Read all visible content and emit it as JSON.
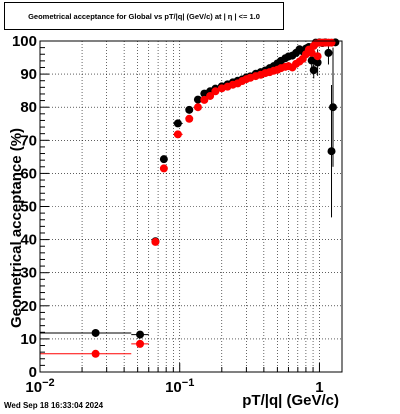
{
  "chart_data": {
    "type": "scatter",
    "title": "Geometrical acceptance for Global vs pT/|q| (GeV/c) at |  η | <= 1.0",
    "xlabel": "pT/|q| (GeV/c)",
    "ylabel": "Geometrical acceptance (%)",
    "xscale": "log",
    "xlim": [
      0.01,
      1.45
    ],
    "ylim": [
      0,
      100
    ],
    "grid": true,
    "x_ticks": [
      {
        "value": 0.01,
        "base": "10",
        "exp": "−2"
      },
      {
        "value": 0.1,
        "base": "10",
        "exp": "−1"
      },
      {
        "value": 1,
        "base": "1",
        "exp": ""
      }
    ],
    "y_ticks": [
      0,
      10,
      20,
      30,
      40,
      50,
      60,
      70,
      80,
      90,
      100
    ],
    "series": [
      {
        "color": "#000000",
        "points": [
          {
            "x": 0.025,
            "y": 11.8,
            "xerr": [
              0.01,
              0.045
            ]
          },
          {
            "x": 0.052,
            "y": 11.3,
            "xerr": [
              0.045,
              0.06
            ]
          },
          {
            "x": 0.067,
            "y": 39.5,
            "xerr": [
              0.064,
              0.07
            ]
          },
          {
            "x": 0.077,
            "y": 64.3
          },
          {
            "x": 0.097,
            "y": 75.1,
            "xerr": [
              0.09,
              0.105
            ]
          },
          {
            "x": 0.117,
            "y": 79.2
          },
          {
            "x": 0.135,
            "y": 82.3
          },
          {
            "x": 0.15,
            "y": 84.1
          },
          {
            "x": 0.165,
            "y": 84.8
          },
          {
            "x": 0.18,
            "y": 85.6
          },
          {
            "x": 0.2,
            "y": 86.3
          },
          {
            "x": 0.22,
            "y": 86.9
          },
          {
            "x": 0.24,
            "y": 87.5
          },
          {
            "x": 0.26,
            "y": 88.0
          },
          {
            "x": 0.28,
            "y": 88.4
          },
          {
            "x": 0.3,
            "y": 89.0
          },
          {
            "x": 0.32,
            "y": 89.3
          },
          {
            "x": 0.35,
            "y": 90.1
          },
          {
            "x": 0.38,
            "y": 90.6
          },
          {
            "x": 0.41,
            "y": 91.1
          },
          {
            "x": 0.44,
            "y": 91.8
          },
          {
            "x": 0.47,
            "y": 92.4
          },
          {
            "x": 0.5,
            "y": 93.2
          },
          {
            "x": 0.53,
            "y": 94.0
          },
          {
            "x": 0.57,
            "y": 94.8
          },
          {
            "x": 0.6,
            "y": 95.3
          },
          {
            "x": 0.64,
            "y": 95.6
          },
          {
            "x": 0.68,
            "y": 96.4
          },
          {
            "x": 0.72,
            "y": 97.5
          },
          {
            "x": 0.76,
            "y": 96.9
          },
          {
            "x": 0.8,
            "y": 97.7
          },
          {
            "x": 0.84,
            "y": 98.2
          },
          {
            "x": 0.88,
            "y": 94.1,
            "yerr": 3.5
          },
          {
            "x": 0.91,
            "y": 91.2,
            "yerr": 2.5
          },
          {
            "x": 0.94,
            "y": 99.5
          },
          {
            "x": 0.97,
            "y": 93.5,
            "yerr": 4
          },
          {
            "x": 1.0,
            "y": 99.6
          },
          {
            "x": 1.05,
            "y": 99.4
          },
          {
            "x": 1.1,
            "y": 99.6
          },
          {
            "x": 1.16,
            "y": 96.4,
            "yerr": 3.5
          },
          {
            "x": 1.22,
            "y": 66.7,
            "yerr": 20
          },
          {
            "x": 1.25,
            "y": 80.0,
            "yerr": 18
          },
          {
            "x": 1.3,
            "y": 99.6
          }
        ]
      },
      {
        "color": "#ff0000",
        "points": [
          {
            "x": 0.025,
            "y": 5.5,
            "xerr": [
              0.01,
              0.045
            ]
          },
          {
            "x": 0.052,
            "y": 8.5,
            "xerr": [
              0.045,
              0.06
            ]
          },
          {
            "x": 0.067,
            "y": 39.3,
            "xerr": [
              0.064,
              0.07
            ]
          },
          {
            "x": 0.077,
            "y": 61.5
          },
          {
            "x": 0.097,
            "y": 71.8,
            "xerr": [
              0.09,
              0.105
            ]
          },
          {
            "x": 0.117,
            "y": 76.5
          },
          {
            "x": 0.135,
            "y": 80.0
          },
          {
            "x": 0.15,
            "y": 82.2
          },
          {
            "x": 0.165,
            "y": 83.4
          },
          {
            "x": 0.18,
            "y": 84.8
          },
          {
            "x": 0.2,
            "y": 85.7
          },
          {
            "x": 0.22,
            "y": 86.2
          },
          {
            "x": 0.24,
            "y": 86.8
          },
          {
            "x": 0.26,
            "y": 87.2
          },
          {
            "x": 0.28,
            "y": 87.9
          },
          {
            "x": 0.3,
            "y": 88.5
          },
          {
            "x": 0.32,
            "y": 88.9
          },
          {
            "x": 0.35,
            "y": 89.4
          },
          {
            "x": 0.38,
            "y": 89.8
          },
          {
            "x": 0.41,
            "y": 90.3
          },
          {
            "x": 0.44,
            "y": 90.6
          },
          {
            "x": 0.47,
            "y": 91.0
          },
          {
            "x": 0.5,
            "y": 91.3
          },
          {
            "x": 0.53,
            "y": 91.8
          },
          {
            "x": 0.57,
            "y": 92.2
          },
          {
            "x": 0.6,
            "y": 92.4
          },
          {
            "x": 0.64,
            "y": 92.0
          },
          {
            "x": 0.68,
            "y": 93.1
          },
          {
            "x": 0.72,
            "y": 93.8
          },
          {
            "x": 0.76,
            "y": 94.6
          },
          {
            "x": 0.8,
            "y": 96.0
          },
          {
            "x": 0.84,
            "y": 97.4
          },
          {
            "x": 0.88,
            "y": 96.4
          },
          {
            "x": 0.91,
            "y": 98.5
          },
          {
            "x": 0.94,
            "y": 99.2
          },
          {
            "x": 0.97,
            "y": 95.4
          },
          {
            "x": 1.0,
            "y": 99.5
          },
          {
            "x": 1.05,
            "y": 99.5
          },
          {
            "x": 1.1,
            "y": 99.5
          },
          {
            "x": 1.16,
            "y": 99.5
          },
          {
            "x": 1.22,
            "y": 99.5
          }
        ]
      }
    ]
  },
  "datestamp": "Wed Sep 18 16:33:04 2024"
}
